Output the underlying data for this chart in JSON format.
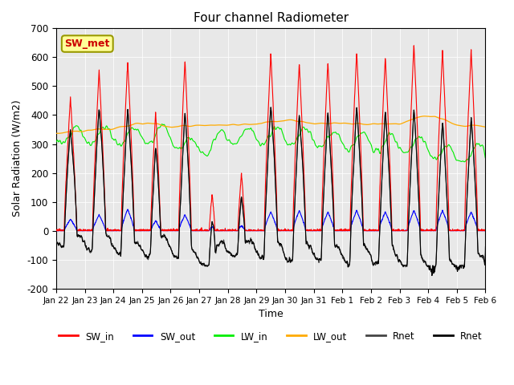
{
  "title": "Four channel Radiometer",
  "xlabel": "Time",
  "ylabel": "Solar Radiation (W/m2)",
  "ylim": [
    -200,
    700
  ],
  "xlim": [
    0,
    15
  ],
  "annotation_text": "SW_met",
  "annotation_color": "#cc0000",
  "annotation_bg": "#ffff99",
  "plot_bg": "#e8e8e8",
  "colors": {
    "SW_in": "#ff0000",
    "SW_out": "#0000ff",
    "LW_in": "#00ee00",
    "LW_out": "#ffaa00",
    "Rnet1": "#444444",
    "Rnet2": "#000000"
  },
  "xtick_labels": [
    "Jan 22",
    "Jan 23",
    "Jan 24",
    "Jan 25",
    "Jan 26",
    "Jan 27",
    "Jan 28",
    "Jan 29",
    "Jan 30",
    "Jan 31",
    "Feb 1",
    "Feb 2",
    "Feb 3",
    "Feb 4",
    "Feb 5",
    "Feb 6"
  ],
  "ytick_values": [
    -200,
    -100,
    0,
    100,
    200,
    300,
    400,
    500,
    600,
    700
  ],
  "legend_entries": [
    "SW_in",
    "SW_out",
    "LW_in",
    "LW_out",
    "Rnet",
    "Rnet"
  ],
  "peak_heights_SW_in": [
    460,
    555,
    585,
    410,
    590,
    130,
    200,
    615,
    580,
    585,
    620,
    600,
    645,
    625,
    625
  ],
  "peak_heights_SW_out": [
    40,
    55,
    75,
    35,
    55,
    15,
    18,
    65,
    70,
    65,
    70,
    65,
    70,
    70,
    65
  ]
}
